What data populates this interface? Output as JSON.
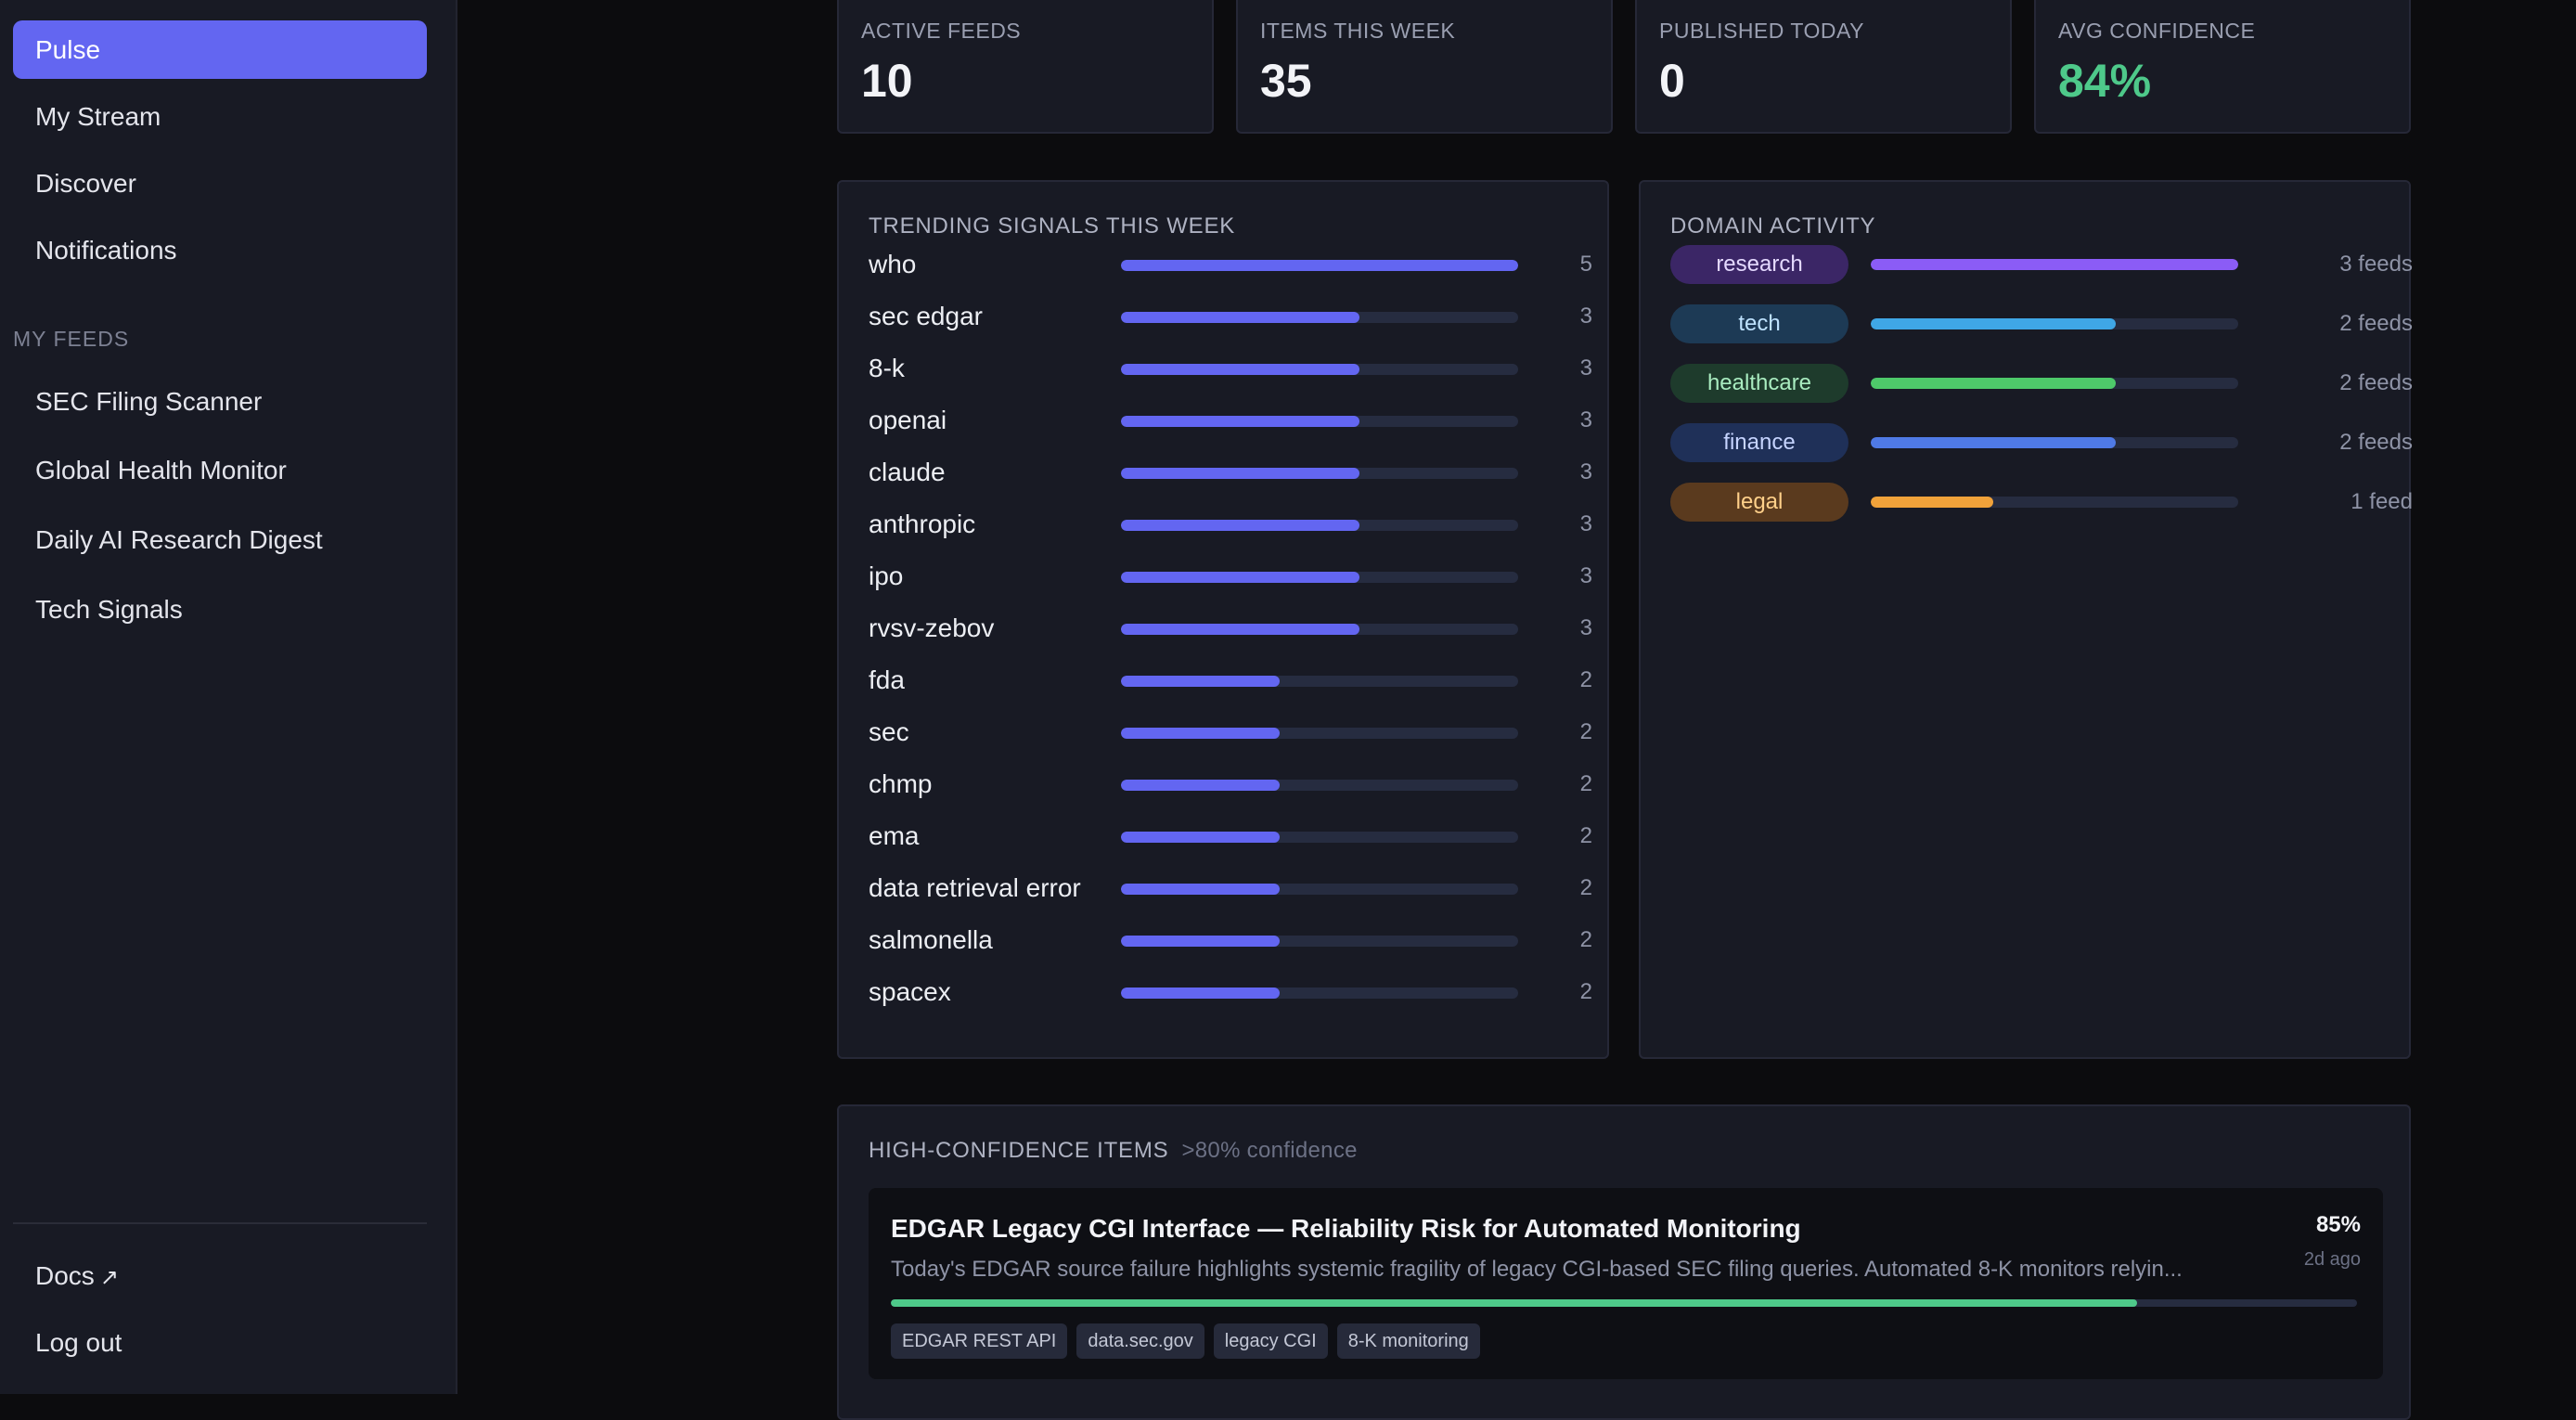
{
  "sidebar": {
    "nav": [
      {
        "label": "Pulse",
        "active": true
      },
      {
        "label": "My Stream"
      },
      {
        "label": "Discover"
      },
      {
        "label": "Notifications"
      }
    ],
    "feeds_section_label": "MY FEEDS",
    "feeds": [
      {
        "label": "SEC Filing Scanner"
      },
      {
        "label": "Global Health Monitor"
      },
      {
        "label": "Daily AI Research Digest"
      },
      {
        "label": "Tech Signals"
      }
    ],
    "bottom": {
      "docs_label": "Docs",
      "docs_icon": "external-link-icon",
      "logout_label": "Log out"
    }
  },
  "stats": [
    {
      "label": "ACTIVE FEEDS",
      "value": "10"
    },
    {
      "label": "ITEMS THIS WEEK",
      "value": "35"
    },
    {
      "label": "PUBLISHED TODAY",
      "value": "0"
    },
    {
      "label": "AVG CONFIDENCE",
      "value": "84%",
      "highlight": true
    }
  ],
  "trending": {
    "title": "TRENDING SIGNALS THIS WEEK",
    "max": 5,
    "items": [
      {
        "label": "who",
        "count": 5
      },
      {
        "label": "sec edgar",
        "count": 3
      },
      {
        "label": "8-k",
        "count": 3
      },
      {
        "label": "openai",
        "count": 3
      },
      {
        "label": "claude",
        "count": 3
      },
      {
        "label": "anthropic",
        "count": 3
      },
      {
        "label": "ipo",
        "count": 3
      },
      {
        "label": "rvsv-zebov",
        "count": 3
      },
      {
        "label": "fda",
        "count": 2
      },
      {
        "label": "sec",
        "count": 2
      },
      {
        "label": "chmp",
        "count": 2
      },
      {
        "label": "ema",
        "count": 2
      },
      {
        "label": "data retrieval error",
        "count": 2
      },
      {
        "label": "salmonella",
        "count": 2
      },
      {
        "label": "spacex",
        "count": 2
      }
    ]
  },
  "domain_activity": {
    "title": "DOMAIN ACTIVITY",
    "max": 3,
    "items": [
      {
        "label": "research",
        "count": 3,
        "count_label": "3 feeds",
        "color": "#8b5cf6",
        "pill_bg": "#3b2666",
        "pill_text": "#e4d9ff"
      },
      {
        "label": "tech",
        "count": 2,
        "count_label": "2 feeds",
        "color": "#3fa7e6",
        "pill_bg": "#1d3a55",
        "pill_text": "#bfe3ff"
      },
      {
        "label": "healthcare",
        "count": 2,
        "count_label": "2 feeds",
        "color": "#4ec96a",
        "pill_bg": "#1e3b2c",
        "pill_text": "#a9ecc0"
      },
      {
        "label": "finance",
        "count": 2,
        "count_label": "2 feeds",
        "color": "#4f7ae6",
        "pill_bg": "#1f3058",
        "pill_text": "#c6d4ff"
      },
      {
        "label": "legal",
        "count": 1,
        "count_label": "1 feed",
        "color": "#f0a23a",
        "pill_bg": "#5a3a1e",
        "pill_text": "#ffd08a"
      }
    ]
  },
  "high_confidence": {
    "title": "HIGH-CONFIDENCE ITEMS",
    "subtitle": ">80% confidence",
    "items": [
      {
        "title": "EDGAR Legacy CGI Interface — Reliability Risk for Automated Monitoring",
        "confidence_label": "85%",
        "confidence": 0.85,
        "age": "2d ago",
        "summary": "Today's EDGAR source failure highlights systemic fragility of legacy CGI-based SEC filing queries. Automated 8-K monitors relyin...",
        "tags": [
          "EDGAR REST API",
          "data.sec.gov",
          "legacy CGI",
          "8-K monitoring"
        ]
      }
    ]
  }
}
